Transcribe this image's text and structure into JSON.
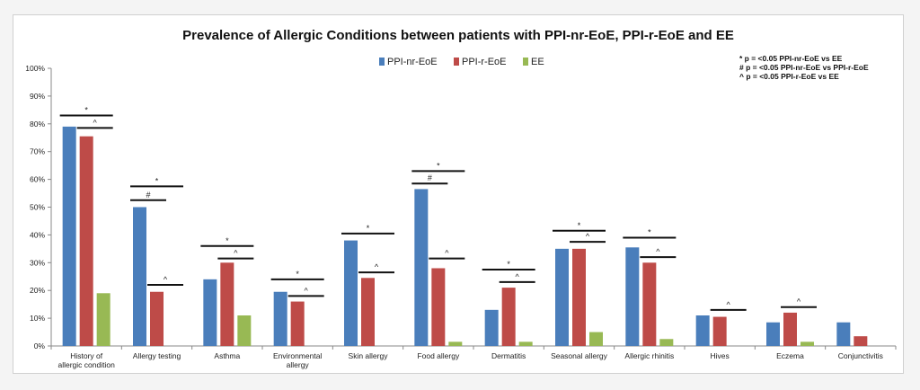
{
  "chart_data": {
    "type": "bar",
    "title": "Prevalence of Allergic Conditions between patients with PPI-nr-EoE, PPI-r-EoE and EE",
    "xlabel": "",
    "ylabel": "",
    "ylim": [
      0,
      100
    ],
    "y_ticks": [
      "0%",
      "10%",
      "20%",
      "30%",
      "40%",
      "50%",
      "60%",
      "70%",
      "80%",
      "90%",
      "100%"
    ],
    "categories": [
      "History of allergic condition",
      "Allergy testing",
      "Asthma",
      "Environmental allergy",
      "Skin allergy",
      "Food allergy",
      "Dermatitis",
      "Seasonal allergy",
      "Allergic rhinitis",
      "Hives",
      "Eczema",
      "Conjunctivitis"
    ],
    "series": [
      {
        "name": "PPI-nr-EoE",
        "color": "#4a7ebb",
        "values": [
          79,
          50,
          24,
          19.5,
          38,
          56.5,
          13,
          35,
          35.5,
          11,
          8.5,
          8.5
        ]
      },
      {
        "name": "PPI-r-EoE",
        "color": "#be4b48",
        "values": [
          75.5,
          19.5,
          30,
          16,
          24.5,
          28,
          21,
          35,
          30,
          10.5,
          12,
          3.5
        ]
      },
      {
        "name": "EE",
        "color": "#98b954",
        "values": [
          19,
          0,
          11,
          0,
          0,
          1.5,
          1.5,
          5,
          2.5,
          0,
          1.5,
          0
        ]
      }
    ],
    "legend_position": "top-center",
    "significance_notes": [
      "* p = <0.05 PPI-nr-EoE vs EE",
      "# p = <0.05 PPI-nr-EoE vs PPI-r-EoE",
      "^ p = <0.05 PPI-r-EoE vs EE"
    ],
    "significance_marks": [
      {
        "category": 0,
        "symbol": "*",
        "from": 0,
        "to": 2,
        "level": 83
      },
      {
        "category": 0,
        "symbol": "^",
        "from": 1,
        "to": 2,
        "level": 78.5
      },
      {
        "category": 1,
        "symbol": "*",
        "from": 0,
        "to": 2,
        "level": 57.5
      },
      {
        "category": 1,
        "symbol": "#",
        "from": 0,
        "to": 1,
        "level": 52.5
      },
      {
        "category": 1,
        "symbol": "^",
        "from": 1,
        "to": 2,
        "level": 22
      },
      {
        "category": 2,
        "symbol": "*",
        "from": 0,
        "to": 2,
        "level": 36
      },
      {
        "category": 2,
        "symbol": "^",
        "from": 1,
        "to": 2,
        "level": 31.5
      },
      {
        "category": 3,
        "symbol": "*",
        "from": 0,
        "to": 2,
        "level": 24
      },
      {
        "category": 3,
        "symbol": "^",
        "from": 1,
        "to": 2,
        "level": 18
      },
      {
        "category": 4,
        "symbol": "*",
        "from": 0,
        "to": 2,
        "level": 40.5
      },
      {
        "category": 4,
        "symbol": "^",
        "from": 1,
        "to": 2,
        "level": 26.5
      },
      {
        "category": 5,
        "symbol": "*",
        "from": 0,
        "to": 2,
        "level": 63
      },
      {
        "category": 5,
        "symbol": "#",
        "from": 0,
        "to": 1,
        "level": 58.5
      },
      {
        "category": 5,
        "symbol": "^",
        "from": 1,
        "to": 2,
        "level": 31.5
      },
      {
        "category": 6,
        "symbol": "*",
        "from": 0,
        "to": 2,
        "level": 27.5
      },
      {
        "category": 6,
        "symbol": "^",
        "from": 1,
        "to": 2,
        "level": 23
      },
      {
        "category": 7,
        "symbol": "*",
        "from": 0,
        "to": 2,
        "level": 41.5
      },
      {
        "category": 7,
        "symbol": "^",
        "from": 1,
        "to": 2,
        "level": 37.5
      },
      {
        "category": 8,
        "symbol": "*",
        "from": 0,
        "to": 2,
        "level": 39
      },
      {
        "category": 8,
        "symbol": "^",
        "from": 1,
        "to": 2,
        "level": 32
      },
      {
        "category": 9,
        "symbol": "^",
        "from": 1,
        "to": 2,
        "level": 13
      },
      {
        "category": 10,
        "symbol": "^",
        "from": 1,
        "to": 2,
        "level": 14
      }
    ],
    "grid": false
  }
}
